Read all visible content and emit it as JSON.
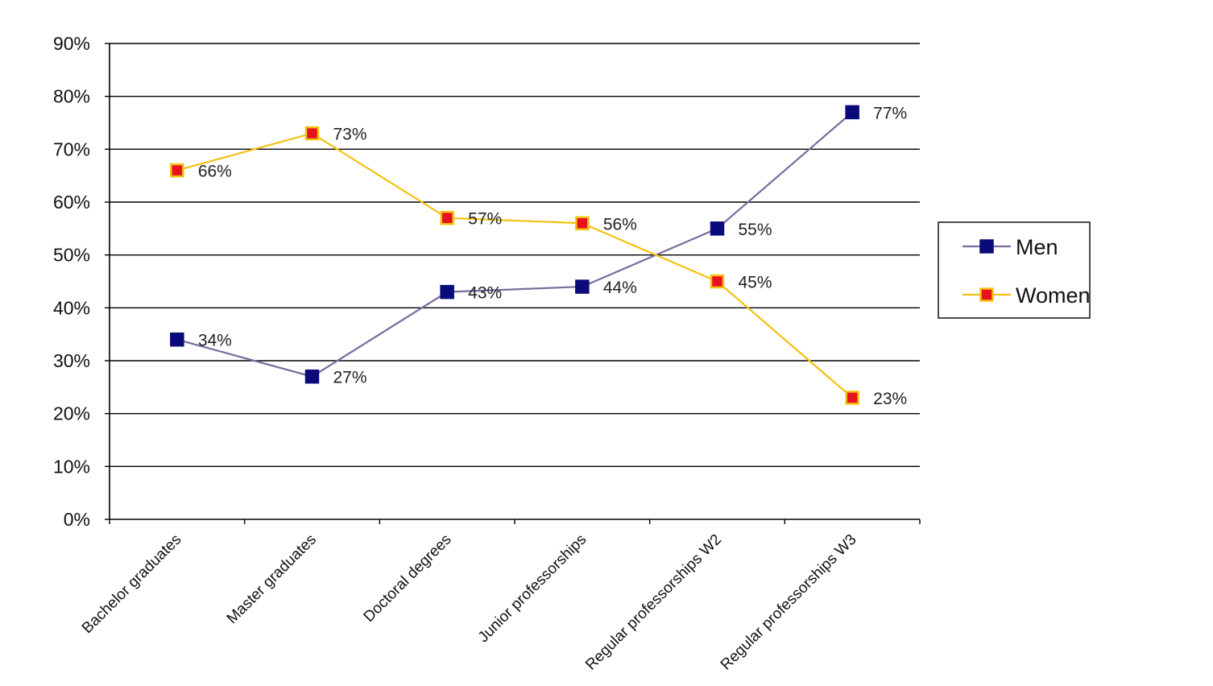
{
  "chart_data": {
    "type": "line",
    "title": "",
    "xlabel": "",
    "ylabel": "",
    "categories": [
      "Bachelor graduates",
      "Master graduates",
      "Doctoral degrees",
      "Junior professorships",
      "Regular professorships W2",
      "Regular professorships W3"
    ],
    "ylim": [
      0,
      90
    ],
    "yticks": [
      0,
      10,
      20,
      30,
      40,
      50,
      60,
      70,
      80,
      90
    ],
    "ytick_labels": [
      "0%",
      "10%",
      "20%",
      "30%",
      "40%",
      "50%",
      "60%",
      "70%",
      "80%",
      "90%"
    ],
    "grid": true,
    "legend_position": "right",
    "series": [
      {
        "name": "Men",
        "values": [
          34,
          27,
          43,
          44,
          55,
          77
        ],
        "labels": [
          "34%",
          "27%",
          "43%",
          "44%",
          "55%",
          "77%"
        ],
        "line_color": "#7b6a9e",
        "marker_fill": "#0a0a7a",
        "marker_edge": "#0a0a7a"
      },
      {
        "name": "Women",
        "values": [
          66,
          73,
          57,
          56,
          45,
          23
        ],
        "labels": [
          "66%",
          "73%",
          "57%",
          "56%",
          "45%",
          "23%"
        ],
        "line_color": "#f3c211",
        "marker_fill": "#e8121f",
        "marker_edge": "#f3c211"
      }
    ]
  }
}
